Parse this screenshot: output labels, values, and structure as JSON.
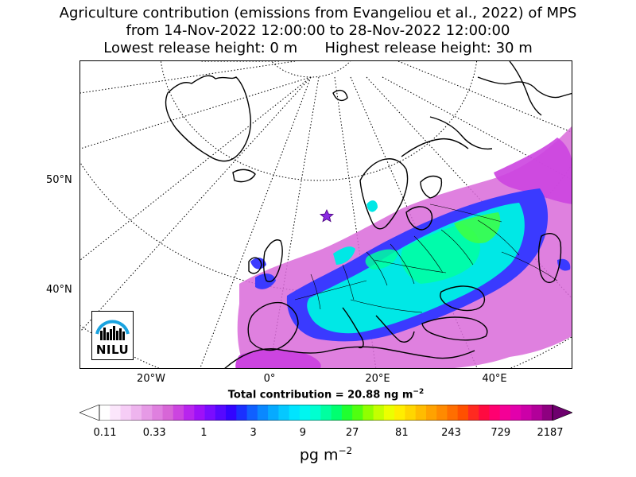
{
  "header": {
    "title_line1": "Agriculture contribution (emissions from Evangeliou et al., 2022) of MPS",
    "title_line2": "from 14-Nov-2022 12:00:00 to 28-Nov-2022 12:00:00",
    "title_line3": "Lowest release height: 0 m      Highest release height: 30 m"
  },
  "map": {
    "lat_labels": [
      "50°N",
      "40°N"
    ],
    "lon_labels": [
      "20°W",
      "0°",
      "20°E",
      "40°E"
    ],
    "marker": "star",
    "logo_text": "NILU"
  },
  "total_contribution": {
    "text": "Total contribution = 20.88 ng m",
    "exponent": "−2"
  },
  "colorbar": {
    "ticks": [
      "0.11",
      "0.33",
      "1",
      "3",
      "9",
      "27",
      "81",
      "243",
      "729",
      "2187"
    ],
    "unit": "pg m",
    "unit_exponent": "−2",
    "colors": [
      "#ffffff",
      "#fbe6fb",
      "#f6cdf6",
      "#eeb4ee",
      "#e69ae6",
      "#df80df",
      "#d766d7",
      "#cc44e0",
      "#b824ee",
      "#9e10f8",
      "#7a0cff",
      "#5608ff",
      "#3204ff",
      "#1a30ff",
      "#1060ff",
      "#0a88ff",
      "#06aaff",
      "#05c8ff",
      "#00e4ff",
      "#00f6f0",
      "#00ffd0",
      "#00ffa0",
      "#00ff70",
      "#20ff30",
      "#50ff10",
      "#90ff00",
      "#c4ff00",
      "#ecff00",
      "#ffee00",
      "#ffd600",
      "#ffbc00",
      "#ffa200",
      "#ff8a00",
      "#ff6e00",
      "#ff5000",
      "#ff2a20",
      "#ff0a40",
      "#ff0070",
      "#f40096",
      "#e200ac",
      "#cc00a8",
      "#b2009a",
      "#8e0080"
    ],
    "under_color": "#ffffff",
    "over_color": "#6e006e"
  }
}
